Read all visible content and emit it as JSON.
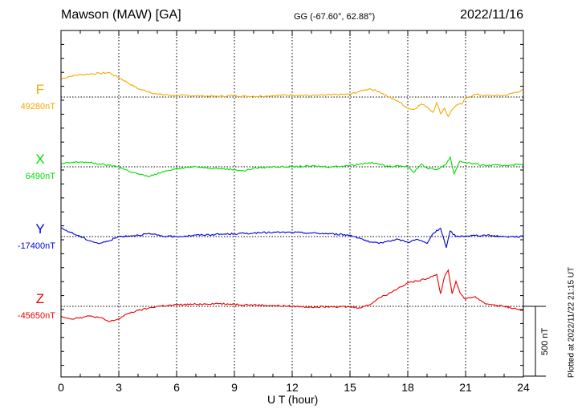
{
  "title": "Mawson (MAW)  [GA]",
  "coords": "GG (-67.60°,  62.88°)",
  "date": "2022/11/16",
  "plotted": "Plotted at 2022/11/22 21:15 UT",
  "chart_data": {
    "type": "line",
    "xlabel": "U T (hour)",
    "xlim": [
      0,
      24
    ],
    "xticks": [
      "0",
      "3",
      "6",
      "9",
      "12",
      "15",
      "18",
      "21",
      "24"
    ],
    "grid": true,
    "scale_label": "500 nT",
    "scale_nT": 500,
    "series": [
      {
        "name": "F",
        "baseline_label": "49280nT",
        "baseline_nT": 49280,
        "color": "#f5a800",
        "x": [
          0,
          0.5,
          1,
          1.5,
          2,
          2.5,
          2.7,
          3,
          3.5,
          4,
          4.5,
          5,
          6,
          7,
          8,
          9,
          10,
          11,
          12,
          13,
          14,
          15,
          15.5,
          16,
          16.5,
          17,
          17.5,
          18,
          18.3,
          18.7,
          19,
          19.3,
          19.5,
          19.7,
          19.9,
          20.1,
          20.3,
          20.5,
          20.8,
          21,
          21.5,
          22,
          23,
          24
        ],
        "y": [
          49410,
          49430,
          49440,
          49445,
          49450,
          49455,
          49440,
          49420,
          49380,
          49340,
          49320,
          49300,
          49290,
          49290,
          49285,
          49290,
          49285,
          49290,
          49295,
          49290,
          49295,
          49300,
          49320,
          49340,
          49320,
          49280,
          49250,
          49200,
          49190,
          49230,
          49210,
          49170,
          49240,
          49160,
          49200,
          49140,
          49190,
          49220,
          49230,
          49270,
          49300,
          49290,
          49290,
          49330
        ]
      },
      {
        "name": "X",
        "baseline_label": "6490nT",
        "baseline_nT": 6490,
        "color": "#00dd00",
        "x": [
          0,
          0.5,
          1,
          1.5,
          2,
          2.5,
          3,
          3.5,
          4,
          4.5,
          5,
          5.5,
          6,
          7,
          8,
          9,
          9.5,
          10,
          11,
          12,
          13,
          14,
          15,
          16,
          16.5,
          17,
          17.5,
          18,
          18.3,
          18.7,
          19,
          19.5,
          20,
          20.2,
          20.4,
          20.7,
          21,
          21.5,
          22,
          23,
          24
        ],
        "y": [
          6510,
          6520,
          6525,
          6520,
          6510,
          6500,
          6490,
          6460,
          6440,
          6420,
          6440,
          6460,
          6480,
          6490,
          6480,
          6470,
          6460,
          6480,
          6490,
          6490,
          6495,
          6490,
          6500,
          6520,
          6510,
          6490,
          6500,
          6490,
          6450,
          6510,
          6480,
          6470,
          6510,
          6560,
          6440,
          6530,
          6520,
          6510,
          6500,
          6500,
          6510
        ]
      },
      {
        "name": "Y",
        "baseline_label": "-17400nT",
        "baseline_nT": -17400,
        "color": "#0000dd",
        "x": [
          0,
          0.5,
          1,
          1.5,
          2,
          2.5,
          3,
          3.5,
          4,
          4.5,
          5,
          5.5,
          6,
          7,
          8,
          9,
          10,
          11,
          12,
          13,
          14,
          15,
          15.5,
          16,
          16.5,
          17,
          17.5,
          18,
          18.5,
          19,
          19.3,
          19.7,
          20,
          20.2,
          20.5,
          21,
          22,
          23,
          24
        ],
        "y": [
          -17340,
          -17370,
          -17400,
          -17430,
          -17450,
          -17430,
          -17400,
          -17395,
          -17390,
          -17380,
          -17390,
          -17400,
          -17400,
          -17390,
          -17385,
          -17380,
          -17375,
          -17370,
          -17370,
          -17375,
          -17380,
          -17390,
          -17410,
          -17440,
          -17450,
          -17430,
          -17420,
          -17440,
          -17420,
          -17450,
          -17380,
          -17340,
          -17480,
          -17360,
          -17400,
          -17395,
          -17390,
          -17400,
          -17400
        ]
      },
      {
        "name": "Z",
        "baseline_label": "-45650nT",
        "baseline_nT": -45650,
        "color": "#ee0000",
        "x": [
          0,
          0.5,
          1,
          1.5,
          2,
          2.5,
          3,
          3.5,
          4,
          4.5,
          5,
          6,
          7,
          8,
          9,
          10,
          11,
          12,
          13,
          14,
          15,
          15.5,
          16,
          16.5,
          17,
          17.5,
          18,
          18.5,
          19,
          19.5,
          19.7,
          19.9,
          20.1,
          20.3,
          20.5,
          20.7,
          21,
          21.5,
          22,
          23,
          24
        ],
        "y": [
          -45720,
          -45740,
          -45730,
          -45720,
          -45730,
          -45760,
          -45740,
          -45700,
          -45680,
          -45665,
          -45650,
          -45640,
          -45635,
          -45630,
          -45635,
          -45640,
          -45645,
          -45650,
          -45655,
          -45650,
          -45655,
          -45660,
          -45640,
          -45590,
          -45560,
          -45520,
          -45480,
          -45470,
          -45450,
          -45420,
          -45560,
          -45440,
          -45390,
          -45560,
          -45470,
          -45550,
          -45600,
          -45580,
          -45630,
          -45650,
          -45680
        ]
      }
    ]
  }
}
